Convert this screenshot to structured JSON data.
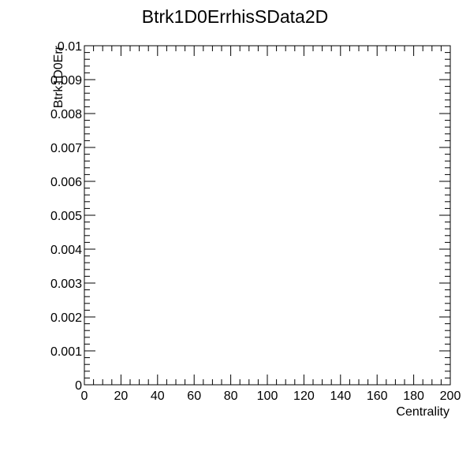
{
  "chart_data": {
    "type": "scatter",
    "title": "Btrk1D0ErrhisSData2D",
    "xlabel": "Centrality",
    "ylabel": "Btrk1D0Err",
    "xlim": [
      0,
      200
    ],
    "ylim": [
      0,
      0.01
    ],
    "x_ticks": [
      "0",
      "20",
      "40",
      "60",
      "80",
      "100",
      "120",
      "140",
      "160",
      "180",
      "200"
    ],
    "y_ticks": [
      "0",
      "0.001",
      "0.002",
      "0.003",
      "0.004",
      "0.005",
      "0.006",
      "0.007",
      "0.008",
      "0.009",
      "0.01"
    ],
    "x": [],
    "y": [],
    "grid": false
  }
}
